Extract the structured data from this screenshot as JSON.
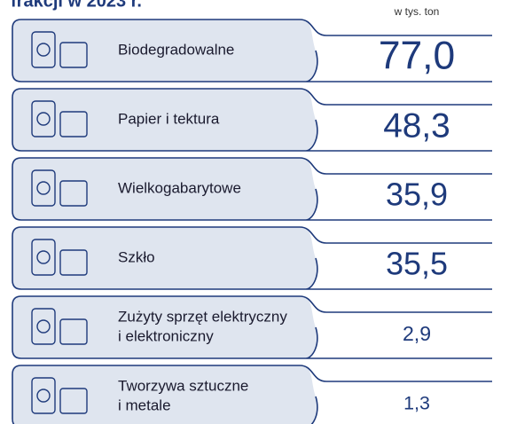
{
  "chart_data": {
    "type": "infographic",
    "title": "frakcji w 2023 r.",
    "unit": "w tys. ton",
    "categories": [
      [
        "Biodegradowalne"
      ],
      [
        "Papier i tektura"
      ],
      [
        "Wielkogabarytowe"
      ],
      [
        "Szkło"
      ],
      [
        "Zużyty sprzęt elektryczny",
        "i elektroniczny"
      ],
      [
        "Tworzywa sztuczne",
        "i metale"
      ]
    ],
    "values": [
      77.0,
      48.3,
      35.9,
      35.5,
      2.9,
      1.3
    ],
    "value_labels": [
      "77,0",
      "48,3",
      "35,9",
      "35,5",
      "2,9",
      "1,3"
    ],
    "color": "#1e3a7b",
    "fill": "#dfe5ef"
  }
}
